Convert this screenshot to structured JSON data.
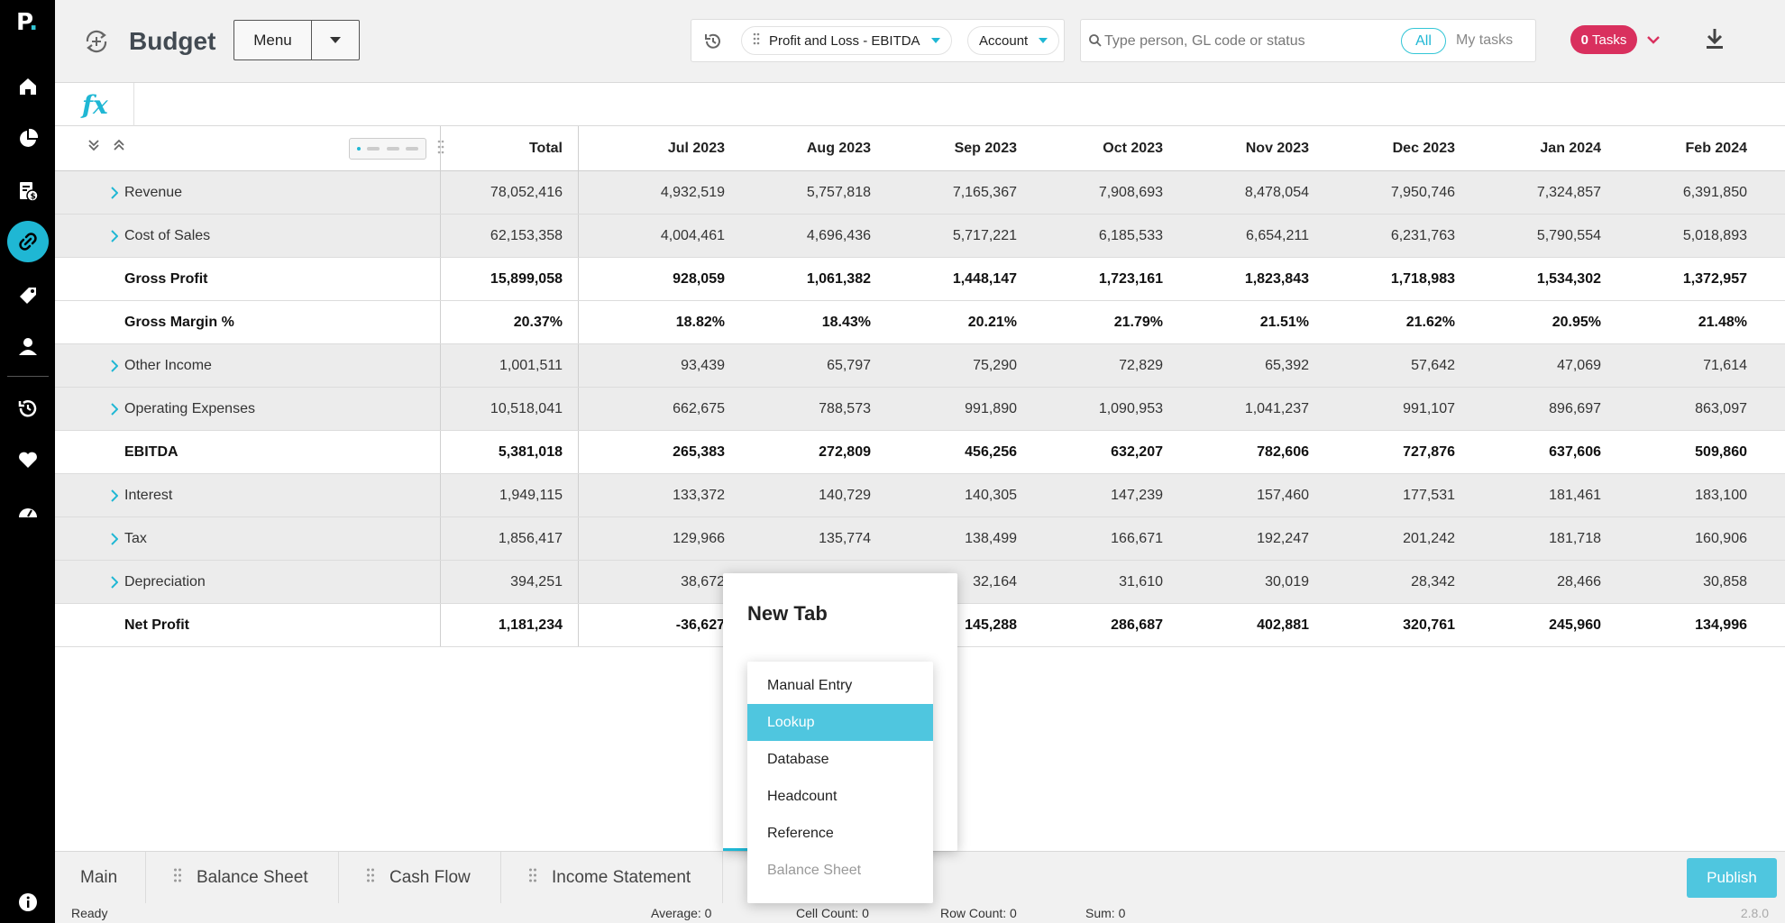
{
  "app": {
    "logo": "P",
    "title": "Budget",
    "menu_label": "Menu"
  },
  "filters": {
    "report": "Profit and Loss - EBITDA",
    "dimension": "Account"
  },
  "search": {
    "placeholder": "Type person, GL code or status",
    "seg_all": "All",
    "seg_my": "My tasks"
  },
  "tasks": {
    "count": "0",
    "label": "Tasks"
  },
  "fx_label": "fx",
  "table": {
    "headers": [
      "Total",
      "Jul 2023",
      "Aug 2023",
      "Sep 2023",
      "Oct 2023",
      "Nov 2023",
      "Dec 2023",
      "Jan 2024",
      "Feb 2024"
    ],
    "rows": [
      {
        "label": "Revenue",
        "expandable": true,
        "bold": false,
        "values": [
          "78,052,416",
          "4,932,519",
          "5,757,818",
          "7,165,367",
          "7,908,693",
          "8,478,054",
          "7,950,746",
          "7,324,857",
          "6,391,850"
        ]
      },
      {
        "label": "Cost of Sales",
        "expandable": true,
        "bold": false,
        "values": [
          "62,153,358",
          "4,004,461",
          "4,696,436",
          "5,717,221",
          "6,185,533",
          "6,654,211",
          "6,231,763",
          "5,790,554",
          "5,018,893"
        ]
      },
      {
        "label": "Gross Profit",
        "expandable": false,
        "bold": true,
        "values": [
          "15,899,058",
          "928,059",
          "1,061,382",
          "1,448,147",
          "1,723,161",
          "1,823,843",
          "1,718,983",
          "1,534,302",
          "1,372,957"
        ]
      },
      {
        "label": "Gross Margin %",
        "expandable": false,
        "bold": true,
        "values": [
          "20.37%",
          "18.82%",
          "18.43%",
          "20.21%",
          "21.79%",
          "21.51%",
          "21.62%",
          "20.95%",
          "21.48%"
        ]
      },
      {
        "label": "Other Income",
        "expandable": true,
        "bold": false,
        "values": [
          "1,001,511",
          "93,439",
          "65,797",
          "75,290",
          "72,829",
          "65,392",
          "57,642",
          "47,069",
          "71,614"
        ]
      },
      {
        "label": "Operating Expenses",
        "expandable": true,
        "bold": false,
        "values": [
          "10,518,041",
          "662,675",
          "788,573",
          "991,890",
          "1,090,953",
          "1,041,237",
          "991,107",
          "896,697",
          "863,097"
        ]
      },
      {
        "label": "EBITDA",
        "expandable": false,
        "bold": true,
        "values": [
          "5,381,018",
          "265,383",
          "272,809",
          "456,256",
          "632,207",
          "782,606",
          "727,876",
          "637,606",
          "509,860"
        ]
      },
      {
        "label": "Interest",
        "expandable": true,
        "bold": false,
        "values": [
          "1,949,115",
          "133,372",
          "140,729",
          "140,305",
          "147,239",
          "157,460",
          "177,531",
          "181,461",
          "183,100"
        ]
      },
      {
        "label": "Tax",
        "expandable": true,
        "bold": false,
        "values": [
          "1,856,417",
          "129,966",
          "135,774",
          "138,499",
          "166,671",
          "192,247",
          "201,242",
          "181,718",
          "160,906"
        ]
      },
      {
        "label": "Depreciation",
        "expandable": true,
        "bold": false,
        "values": [
          "394,251",
          "38,672",
          "",
          "32,164",
          "31,610",
          "30,019",
          "28,342",
          "28,466",
          "30,858"
        ]
      },
      {
        "label": "Net Profit",
        "expandable": false,
        "bold": true,
        "values": [
          "1,181,234",
          "-36,627",
          "",
          "145,288",
          "286,687",
          "402,881",
          "320,761",
          "245,960",
          "134,996"
        ]
      }
    ]
  },
  "tabs": [
    {
      "label": "Main",
      "grip": false
    },
    {
      "label": "Balance Sheet",
      "grip": true
    },
    {
      "label": "Cash Flow",
      "grip": true
    },
    {
      "label": "Income Statement",
      "grip": true
    }
  ],
  "publish_label": "Publish",
  "status": {
    "ready": "Ready",
    "average": "Average: 0",
    "cell_count": "Cell Count: 0",
    "row_count": "Row Count: 0",
    "sum": "Sum: 0",
    "version": "2.8.0"
  },
  "new_tab_popup": {
    "title": "New Tab",
    "options": [
      {
        "label": "Manual Entry",
        "state": "normal"
      },
      {
        "label": "Lookup",
        "state": "selected"
      },
      {
        "label": "Database",
        "state": "normal"
      },
      {
        "label": "Headcount",
        "state": "normal"
      },
      {
        "label": "Reference",
        "state": "normal"
      },
      {
        "label": "Balance Sheet",
        "state": "dimmed"
      }
    ]
  },
  "colors": {
    "accent": "#1fb7d4",
    "tasks_badge": "#d9305e",
    "publish": "#4fc6df",
    "sidebar": "#000000"
  },
  "icons": {
    "sidebar": [
      "home-icon",
      "pie-chart-icon",
      "budget-doc-icon",
      "link-icon",
      "tag-icon",
      "user-icon",
      "history-icon",
      "heart-icon",
      "dashboard-icon",
      "info-icon"
    ]
  }
}
